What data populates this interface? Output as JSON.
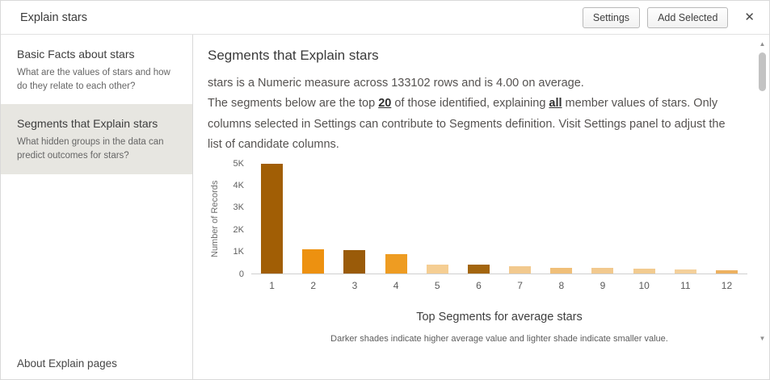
{
  "header": {
    "title": "Explain stars",
    "settings_label": "Settings",
    "add_selected_label": "Add Selected",
    "close_icon": "✕"
  },
  "sidebar": {
    "items": [
      {
        "title": "Basic Facts about stars",
        "subtitle": "What are the values of stars and how do they relate to each other?",
        "selected": false
      },
      {
        "title": "Segments that Explain stars",
        "subtitle": "What hidden groups in the data can predict outcomes for stars?",
        "selected": true
      }
    ],
    "footer": "About Explain pages"
  },
  "main": {
    "heading": "Segments that Explain stars",
    "intro": "stars is a Numeric measure across 133102 rows and is 4.00 on average.",
    "body_prefix": "The segments below are the top ",
    "link_top": "20",
    "body_mid": " of those identified, explaining ",
    "link_all": "all",
    "body_suffix": " member values of stars. Only columns selected in Settings can contribute to Segments definition. Visit Settings panel to adjust the list of candidate columns."
  },
  "scrollbar": {
    "up_arrow": "▲",
    "down_arrow": "▼"
  },
  "chart_data": {
    "type": "bar",
    "title": "Top Segments for average stars",
    "caption": "Darker shades indicate higher average value and lighter shade indicate smaller value.",
    "xlabel": "",
    "ylabel": "Number of Records",
    "categories": [
      "1",
      "2",
      "3",
      "4",
      "5",
      "6",
      "7",
      "8",
      "9",
      "10",
      "11",
      "12"
    ],
    "values": [
      5000,
      1100,
      1050,
      850,
      400,
      400,
      300,
      240,
      250,
      200,
      160,
      120
    ],
    "colors": [
      "#A15E05",
      "#ED9110",
      "#9A5B09",
      "#EE9C22",
      "#F5CE93",
      "#A3650E",
      "#F2C98E",
      "#F0BF79",
      "#F2C98E",
      "#F2CB90",
      "#F4D09B",
      "#EDB160"
    ],
    "ylim": [
      0,
      5000
    ],
    "yticks": [
      "5K",
      "4K",
      "3K",
      "2K",
      "1K",
      "0"
    ],
    "grid": false,
    "legend": false
  }
}
